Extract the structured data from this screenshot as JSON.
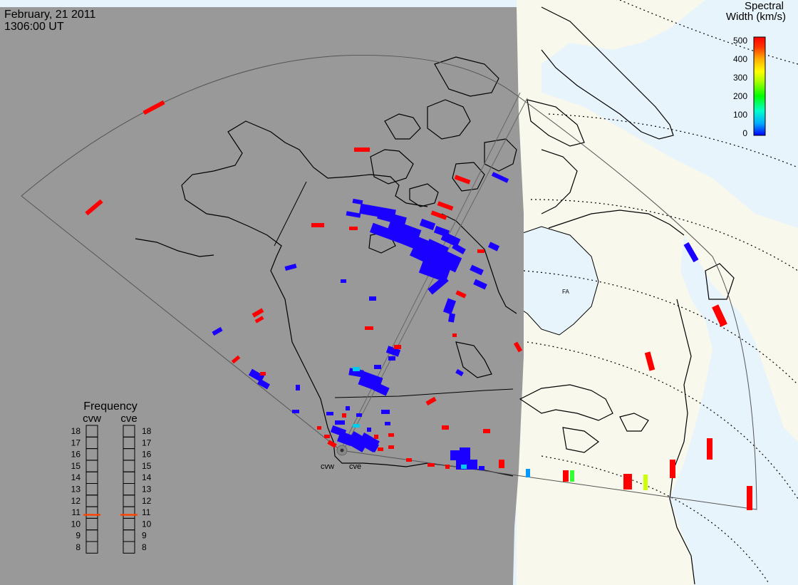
{
  "header": {
    "date": "February, 21 2011",
    "time": "1306:00 UT"
  },
  "colorbar": {
    "title_line1": "Spectral",
    "title_line2": "Width (km/s)",
    "ticks": [
      "500",
      "400",
      "300",
      "200",
      "100",
      "0"
    ],
    "min": 0,
    "max": 500,
    "colors": [
      "#0000ff",
      "#00aaff",
      "#00ffcc",
      "#00ff00",
      "#aaff00",
      "#ffff00",
      "#ffaa00",
      "#ff5500",
      "#ff0000"
    ]
  },
  "radars": {
    "west": "cvw",
    "east": "cve"
  },
  "frequency": {
    "title": "Frequency",
    "col_west": "cvw",
    "col_east": "cve",
    "levels": [
      "18",
      "17",
      "16",
      "15",
      "14",
      "13",
      "12",
      "11",
      "10",
      "9",
      "8"
    ],
    "west_mhz": 10.8,
    "east_mhz": 10.8,
    "marker_color": "#ff4400"
  },
  "map": {
    "night_color": "#999999",
    "day_land": "#f8f8ec",
    "day_ocean": "#e8f4fc",
    "island_label": "FA"
  }
}
